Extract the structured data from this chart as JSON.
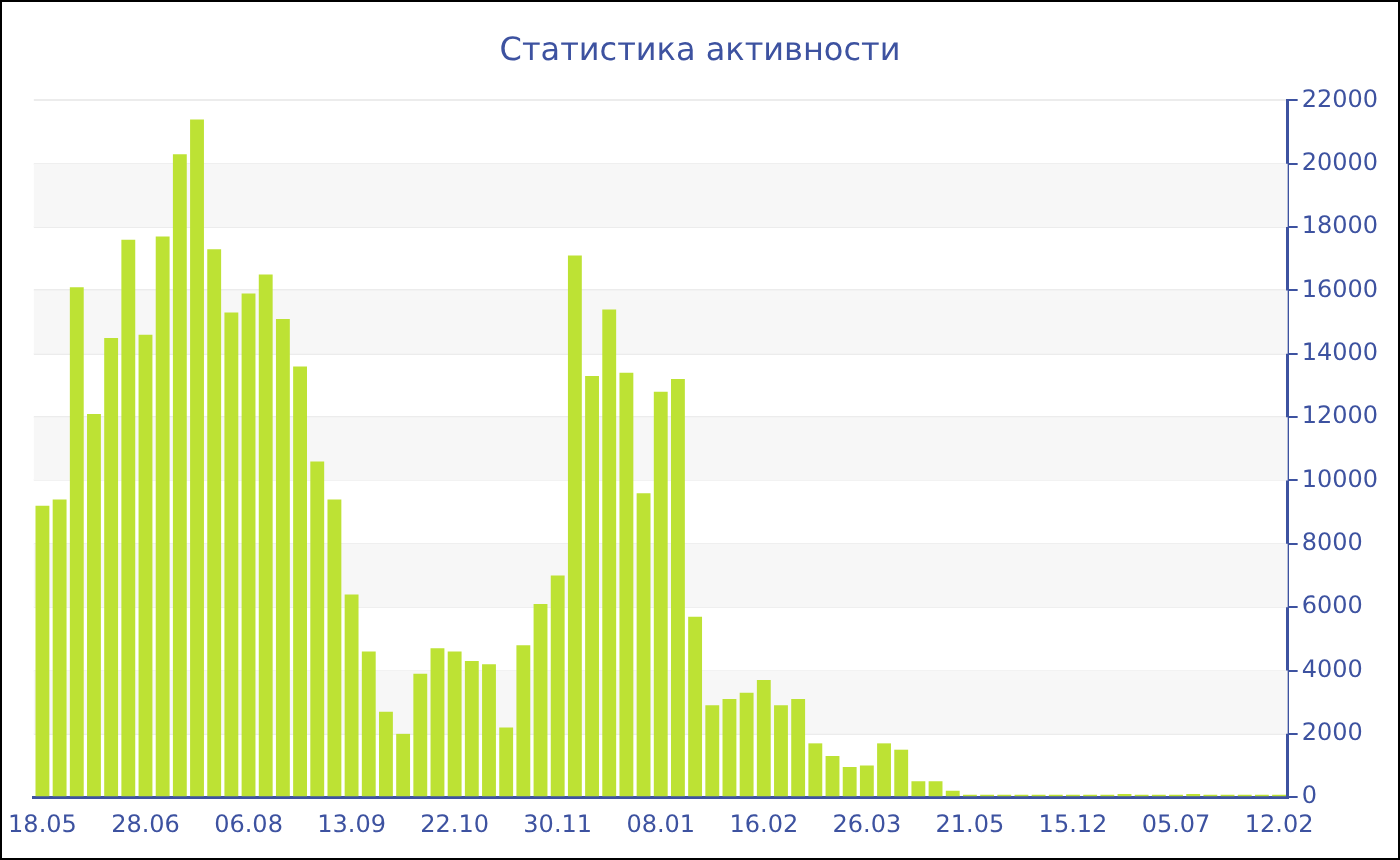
{
  "chart_data": {
    "type": "bar",
    "title": "Статистика активности",
    "categories": [
      "18.05",
      null,
      null,
      null,
      null,
      null,
      "28.06",
      null,
      null,
      null,
      null,
      null,
      "06.08",
      null,
      null,
      null,
      null,
      null,
      "13.09",
      null,
      null,
      null,
      null,
      null,
      "22.10",
      null,
      null,
      null,
      null,
      null,
      "30.11",
      null,
      null,
      null,
      null,
      null,
      "08.01",
      null,
      null,
      null,
      null,
      null,
      "16.02",
      null,
      null,
      null,
      null,
      null,
      "26.03",
      null,
      null,
      null,
      null,
      null,
      "21.05",
      null,
      null,
      null,
      null,
      null,
      "15.12",
      null,
      null,
      null,
      null,
      null,
      "05.07",
      null,
      null,
      null,
      null,
      null,
      "12.02"
    ],
    "values": [
      9200,
      9400,
      16100,
      12100,
      14500,
      17600,
      14600,
      17700,
      20300,
      21400,
      17300,
      15300,
      15900,
      16500,
      15100,
      13600,
      10600,
      9400,
      6400,
      4600,
      2700,
      2000,
      3900,
      4700,
      4600,
      4300,
      4200,
      2200,
      4800,
      6100,
      7000,
      17100,
      13300,
      15400,
      13400,
      9600,
      12800,
      13200,
      5700,
      2900,
      3100,
      3300,
      3700,
      2900,
      3100,
      1700,
      1300,
      950,
      1000,
      1700,
      1500,
      500,
      500,
      200,
      80,
      80,
      80,
      80,
      80,
      80,
      80,
      80,
      80,
      100,
      80,
      80,
      80,
      100,
      80,
      80,
      80,
      80,
      80
    ],
    "color": "#bde234",
    "ylim": [
      0,
      22000
    ],
    "yticks": [
      0,
      2000,
      4000,
      6000,
      8000,
      10000,
      12000,
      14000,
      16000,
      18000,
      20000,
      22000
    ],
    "grid": "y"
  }
}
